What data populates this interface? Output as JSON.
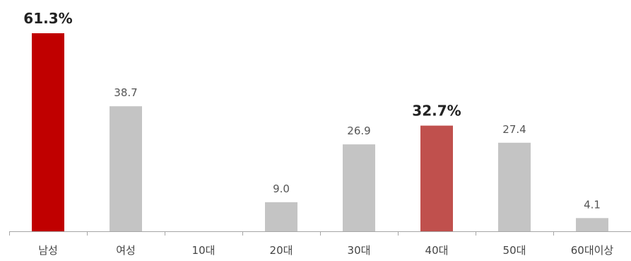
{
  "chart_data": {
    "type": "bar",
    "categories": [
      "남성",
      "여성",
      "10대",
      "20대",
      "30대",
      "40대",
      "50대",
      "60대이상"
    ],
    "values": [
      61.3,
      38.7,
      0,
      9.0,
      26.9,
      32.7,
      27.4,
      4.1
    ],
    "value_labels": [
      "61.3%",
      "38.7",
      "",
      "9.0",
      "26.9",
      "32.7%",
      "27.4",
      "4.1"
    ],
    "highlighted": [
      true,
      false,
      false,
      false,
      false,
      true,
      false,
      false
    ],
    "title": "",
    "xlabel": "",
    "ylabel": "",
    "ylim": [
      0,
      61.3
    ],
    "grid": false,
    "legend": "none",
    "colors": {
      "default": "#c4c4c4",
      "highlight_primary": "#c00000",
      "highlight_secondary": "#c0504d",
      "axis": "#a6a6a6"
    }
  }
}
